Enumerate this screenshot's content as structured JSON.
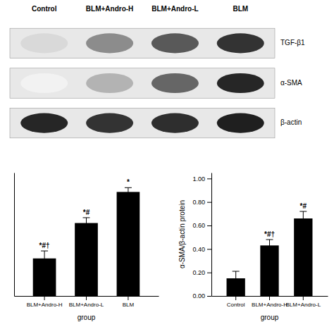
{
  "chart_data": [
    {
      "type": "heatmap",
      "categories": [
        "Control",
        "BLM+Andro-H",
        "BLM+Andro-L",
        "BLM"
      ],
      "rows": [
        "TGF-β1",
        "α-SMA",
        "β-actin"
      ],
      "cells": [
        [
          0.15,
          0.45,
          0.65,
          0.8
        ],
        [
          0.05,
          0.3,
          0.6,
          0.85
        ],
        [
          0.85,
          0.8,
          0.82,
          0.88
        ]
      ]
    },
    {
      "type": "bar",
      "categories": [
        "BLM+Andro-H",
        "BLM+Andro-L",
        "BLM"
      ],
      "values": [
        0.35,
        0.68,
        0.97
      ],
      "errors": [
        0.07,
        0.05,
        0.04
      ],
      "annotations": [
        "*#†",
        "*#",
        "*"
      ],
      "xlabel": "group",
      "ylim": [
        0,
        1.15
      ],
      "yticks": [],
      "tick_labels": "x",
      "color": "#000000"
    },
    {
      "type": "bar",
      "categories": [
        "Control",
        "BLM+Andro-H",
        "BLM+Andro-L"
      ],
      "values": [
        0.15,
        0.43,
        0.66
      ],
      "errors": [
        0.06,
        0.05,
        0.06
      ],
      "annotations": [
        null,
        "*#†",
        "*#"
      ],
      "ylabel": "α-SMA/β-actin protein",
      "xlabel": "group",
      "ylim": [
        0.0,
        1.05
      ],
      "yticks": [
        {
          "value": 0.0,
          "label": "0.00"
        },
        {
          "value": 0.2,
          "label": "0.20"
        },
        {
          "value": 0.4,
          "label": "0.40"
        },
        {
          "value": 0.6,
          "label": "0.60"
        },
        {
          "value": 0.8,
          "label": "0.80"
        },
        {
          "value": 1.0,
          "label": "1.00"
        }
      ],
      "color": "#000000"
    }
  ]
}
